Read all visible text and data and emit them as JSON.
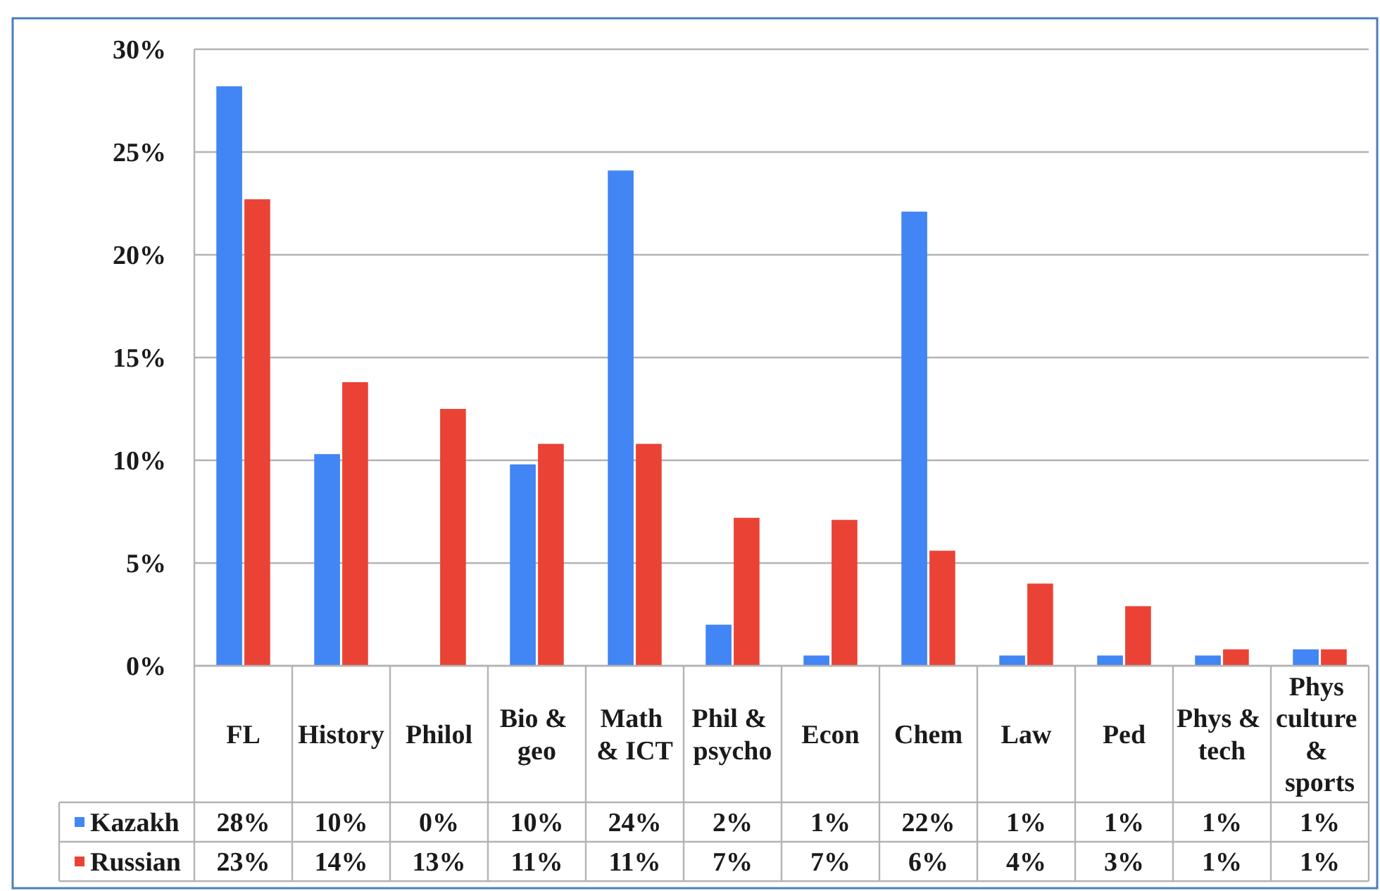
{
  "chart_data": {
    "type": "bar",
    "categories": [
      "FL",
      "History",
      "Philol",
      "Bio & geo",
      "Math & ICT",
      "Phil & psycho",
      "Econ",
      "Chem",
      "Law",
      "Ped",
      "Phys & tech",
      "Phys culture & sports"
    ],
    "series": [
      {
        "name": "Kazakh",
        "color": "#4285f4",
        "values": [
          28.2,
          10.3,
          0,
          9.8,
          24.1,
          2.0,
          0.5,
          22.1,
          0.5,
          0.5,
          0.5,
          0.8
        ],
        "value_labels": [
          "28%",
          "10%",
          "0%",
          "10%",
          "24%",
          "2%",
          "1%",
          "22%",
          "1%",
          "1%",
          "1%",
          "1%"
        ]
      },
      {
        "name": "Russian",
        "color": "#ea4335",
        "values": [
          22.7,
          13.8,
          12.5,
          10.8,
          10.8,
          7.2,
          7.1,
          5.6,
          4.0,
          2.9,
          0.8,
          0.8
        ],
        "value_labels": [
          "23%",
          "14%",
          "13%",
          "11%",
          "11%",
          "7%",
          "7%",
          "6%",
          "4%",
          "3%",
          "1%",
          "1%"
        ]
      }
    ],
    "ylim": [
      0,
      30
    ],
    "yticks": [
      {
        "value": 0,
        "label": "0%"
      },
      {
        "value": 5,
        "label": "5%"
      },
      {
        "value": 10,
        "label": "10%"
      },
      {
        "value": 15,
        "label": "15%"
      },
      {
        "value": 20,
        "label": "20%"
      },
      {
        "value": 25,
        "label": "25%"
      },
      {
        "value": 30,
        "label": "30%"
      }
    ],
    "grid": "y",
    "legend": "bottom left"
  }
}
